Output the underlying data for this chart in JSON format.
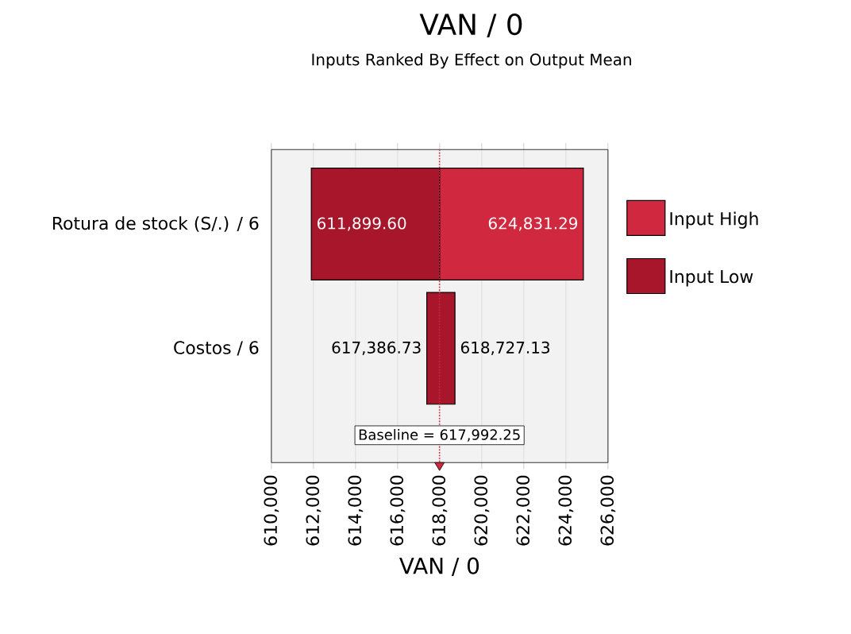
{
  "chart_data": {
    "type": "bar",
    "orientation": "horizontal",
    "title": "VAN / 0",
    "subtitle": "Inputs Ranked By Effect on Output Mean",
    "xlabel": "VAN / 0",
    "categories": [
      "Rotura de stock (S/.) / 6",
      "Costos / 6"
    ],
    "series": [
      {
        "name": "Input High",
        "color": "#d0283f",
        "base": [
          617992.25,
          null
        ],
        "values": [
          6839.04,
          null
        ]
      },
      {
        "name": "Input Low",
        "color": "#a8162c",
        "base": [
          611899.6,
          617386.73
        ],
        "values": [
          6092.65,
          1340.4
        ]
      }
    ],
    "xlim": [
      610000,
      626000
    ],
    "xticks": [
      {
        "value": 610000,
        "label": "610,000"
      },
      {
        "value": 612000,
        "label": "612,000"
      },
      {
        "value": 614000,
        "label": "614,000"
      },
      {
        "value": 616000,
        "label": "616,000"
      },
      {
        "value": 618000,
        "label": "618,000"
      },
      {
        "value": 620000,
        "label": "620,000"
      },
      {
        "value": 622000,
        "label": "622,000"
      },
      {
        "value": 624000,
        "label": "624,000"
      },
      {
        "value": 626000,
        "label": "626,000"
      }
    ],
    "ref_lines": [
      {
        "axis": "x",
        "value": 617992.25,
        "label": "Baseline = 617,992.25",
        "color": "#d0283f",
        "line_style": "dotted"
      }
    ],
    "annotations": [
      {
        "text": "611,899.60",
        "x": 611899.6,
        "y": "Rotura de stock (S/.) / 6"
      },
      {
        "text": "624,831.29",
        "x": 624831.29,
        "y": "Rotura de stock (S/.) / 6"
      },
      {
        "text": "617,386.73",
        "x": 617386.73,
        "y": "Costos / 6"
      },
      {
        "text": "618,727.13",
        "x": 618727.13,
        "y": "Costos / 6"
      }
    ],
    "grid": "x",
    "legend": "right"
  }
}
